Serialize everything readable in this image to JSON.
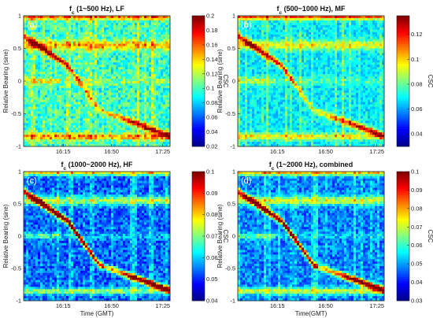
{
  "colormap": [
    "#00008f",
    "#0000ff",
    "#0080ff",
    "#00ffff",
    "#80ff80",
    "#ffff00",
    "#ff8000",
    "#ff0000",
    "#800000"
  ],
  "chart_data": [
    {
      "type": "heatmap",
      "label": "(a)",
      "title_main": "f",
      "title_sub": "c",
      "title_rest": " (1~500 Hz), LF",
      "ylabel": "Relative Bearing (sine)",
      "xlabel": "",
      "xticks": [
        "16:15",
        "16:50",
        "17:25"
      ],
      "yticks": [
        "1",
        "0.5",
        "0",
        "-0.5",
        "-1"
      ],
      "ylim": [
        -1,
        1
      ],
      "colorbar_label": "CSC",
      "colorbar_ticks": [
        "0.2",
        "0.18",
        "0.16",
        "0.14",
        "0.12",
        "0.1",
        "0.08",
        "0.06",
        "0.04",
        "0.02"
      ],
      "colorbar_range": [
        0.02,
        0.2
      ]
    },
    {
      "type": "heatmap",
      "label": "(b)",
      "title_main": "f",
      "title_sub": "c",
      "title_rest": " (500~1000 Hz), MF",
      "ylabel": "Relative Bearing (sine)",
      "xlabel": "",
      "xticks": [
        "16:15",
        "16:50",
        "17:25"
      ],
      "yticks": [
        "1",
        "0.5",
        "0",
        "-0.5",
        "-1"
      ],
      "ylim": [
        -1,
        1
      ],
      "colorbar_label": "CSC",
      "colorbar_ticks": [
        "0.12",
        "0.1",
        "0.08",
        "0.06",
        "0.04"
      ],
      "colorbar_range": [
        0.03,
        0.135
      ]
    },
    {
      "type": "heatmap",
      "label": "(c)",
      "title_main": "f",
      "title_sub": "c",
      "title_rest": " (1000~2000 Hz), HF",
      "ylabel": "Relative Bearing (sine)",
      "xlabel": "Time (GMT)",
      "xticks": [
        "16:15",
        "16:50",
        "17:25"
      ],
      "yticks": [
        "1",
        "0.5",
        "0",
        "-0.5",
        "-1"
      ],
      "ylim": [
        -1,
        1
      ],
      "colorbar_label": "CSC",
      "colorbar_ticks": [
        "0.1",
        "0.09",
        "0.08",
        "0.07",
        "0.06",
        "0.05",
        "0.04"
      ],
      "colorbar_range": [
        0.04,
        0.1
      ]
    },
    {
      "type": "heatmap",
      "label": "(d)",
      "title_main": "f",
      "title_sub": "c",
      "title_rest": " (1~2000 Hz), combined",
      "ylabel": "Relative Bearing (sine)",
      "xlabel": "Time(GMT)",
      "xticks": [
        "16:15",
        "16:50",
        "17:25"
      ],
      "yticks": [
        "1",
        "0.5",
        "0",
        "-0.5",
        "-1"
      ],
      "ylim": [
        -1,
        1
      ],
      "colorbar_label": "CSC",
      "colorbar_ticks": [
        "0.1",
        "0.09",
        "0.08",
        "0.07",
        "0.06",
        "0.05",
        "0.04",
        "0.03"
      ],
      "colorbar_range": [
        0.03,
        0.1
      ]
    }
  ]
}
